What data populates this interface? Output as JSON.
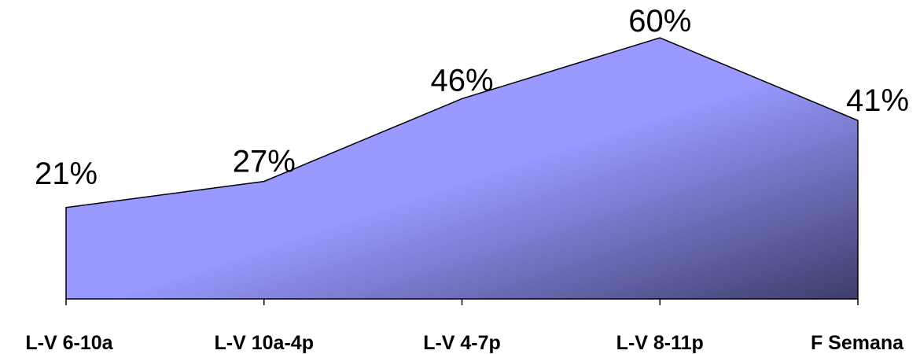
{
  "chart_data": {
    "type": "area",
    "categories": [
      "L-V 6-10a",
      "L-V 10a-4p",
      "L-V 4-7p",
      "L-V 8-11p",
      "F Semana"
    ],
    "series": [
      {
        "values": [
          21,
          27,
          46,
          60,
          41
        ],
        "labels": [
          "21%",
          "27%",
          "46%",
          "60%",
          "41%"
        ]
      }
    ],
    "ylim": [
      0,
      60
    ],
    "grid": false,
    "legend": "none",
    "colors": {
      "fill_light": "#9999ff",
      "fill_dark": "#3d3d6b",
      "stroke": "#000000"
    }
  }
}
